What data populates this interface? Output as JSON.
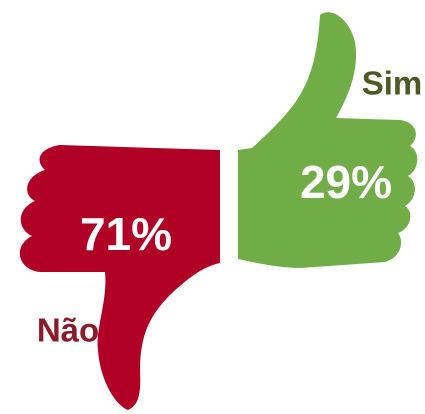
{
  "chart_data": {
    "type": "thumbs",
    "categories": [
      "Sim",
      "Não"
    ],
    "values": [
      29,
      71
    ],
    "value_labels": [
      "29%",
      "71%"
    ],
    "colors": [
      "#70ad47",
      "#b00026"
    ],
    "label_colors": [
      "#4b5a22",
      "#8b1a2a"
    ]
  }
}
